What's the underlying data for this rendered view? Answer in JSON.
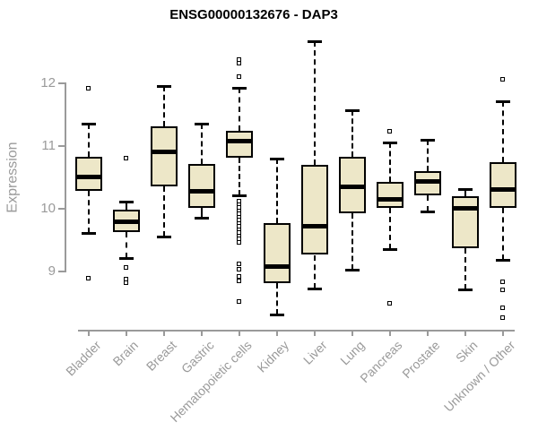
{
  "title": "ENSG00000132676 - DAP3",
  "colors": {
    "box_fill": "#ede7c8",
    "box_border": "#000000",
    "axis": "#9a9a9a",
    "text_gray": "#9a9a9a",
    "title_text": "#000000"
  },
  "chart_data": {
    "type": "boxplot",
    "title": "ENSG00000132676 - DAP3",
    "xlabel": "",
    "ylabel": "Expression",
    "ylim": [
      8.0,
      12.8
    ],
    "yticks": [
      9,
      10,
      11,
      12
    ],
    "grid": false,
    "legend": "none",
    "categories": [
      "Bladder",
      "Brain",
      "Breast",
      "Gastric",
      "Hematopoietic cells",
      "Kidney",
      "Liver",
      "Lung",
      "Pancreas",
      "Prostate",
      "Skin",
      "Unknown / Other"
    ],
    "series": [
      {
        "category": "Bladder",
        "whisker_low": 9.6,
        "q1": 10.27,
        "median": 10.5,
        "q3": 10.81,
        "whisker_high": 11.35,
        "outliers": [
          11.9,
          8.87
        ]
      },
      {
        "category": "Brain",
        "whisker_low": 9.2,
        "q1": 9.62,
        "median": 9.78,
        "q3": 9.97,
        "whisker_high": 10.1,
        "outliers": [
          10.78,
          9.05,
          8.86,
          8.8
        ]
      },
      {
        "category": "Breast",
        "whisker_low": 9.54,
        "q1": 10.35,
        "median": 10.9,
        "q3": 11.3,
        "whisker_high": 11.94,
        "outliers": []
      },
      {
        "category": "Gastric",
        "whisker_low": 9.85,
        "q1": 10.0,
        "median": 10.27,
        "q3": 10.7,
        "whisker_high": 11.34,
        "outliers": []
      },
      {
        "category": "Hematopoietic cells",
        "whisker_low": 10.2,
        "q1": 10.8,
        "median": 11.06,
        "q3": 11.23,
        "whisker_high": 11.92,
        "outliers": [
          12.36,
          12.3,
          12.08,
          10.1,
          10.05,
          10.0,
          9.95,
          9.9,
          9.85,
          9.8,
          9.75,
          9.7,
          9.65,
          9.6,
          9.55,
          9.5,
          9.45,
          9.1,
          9.02,
          8.9,
          8.83,
          8.5
        ]
      },
      {
        "category": "Kidney",
        "whisker_low": 8.3,
        "q1": 8.8,
        "median": 9.06,
        "q3": 9.76,
        "whisker_high": 10.78,
        "outliers": []
      },
      {
        "category": "Liver",
        "whisker_low": 8.72,
        "q1": 9.25,
        "median": 9.71,
        "q3": 10.68,
        "whisker_high": 12.66,
        "outliers": []
      },
      {
        "category": "Lung",
        "whisker_low": 9.02,
        "q1": 9.92,
        "median": 10.33,
        "q3": 10.81,
        "whisker_high": 11.56,
        "outliers": []
      },
      {
        "category": "Pancreas",
        "whisker_low": 9.35,
        "q1": 10.0,
        "median": 10.13,
        "q3": 10.41,
        "whisker_high": 11.05,
        "outliers": [
          11.22,
          8.47
        ]
      },
      {
        "category": "Prostate",
        "whisker_low": 9.95,
        "q1": 10.2,
        "median": 10.42,
        "q3": 10.58,
        "whisker_high": 11.08,
        "outliers": []
      },
      {
        "category": "Skin",
        "whisker_low": 8.7,
        "q1": 9.36,
        "median": 10.0,
        "q3": 10.19,
        "whisker_high": 10.3,
        "outliers": []
      },
      {
        "category": "Unknown / Other",
        "whisker_low": 9.17,
        "q1": 10.0,
        "median": 10.29,
        "q3": 10.73,
        "whisker_high": 11.7,
        "outliers": [
          12.05,
          8.82,
          8.68,
          8.4,
          8.25
        ]
      }
    ]
  }
}
